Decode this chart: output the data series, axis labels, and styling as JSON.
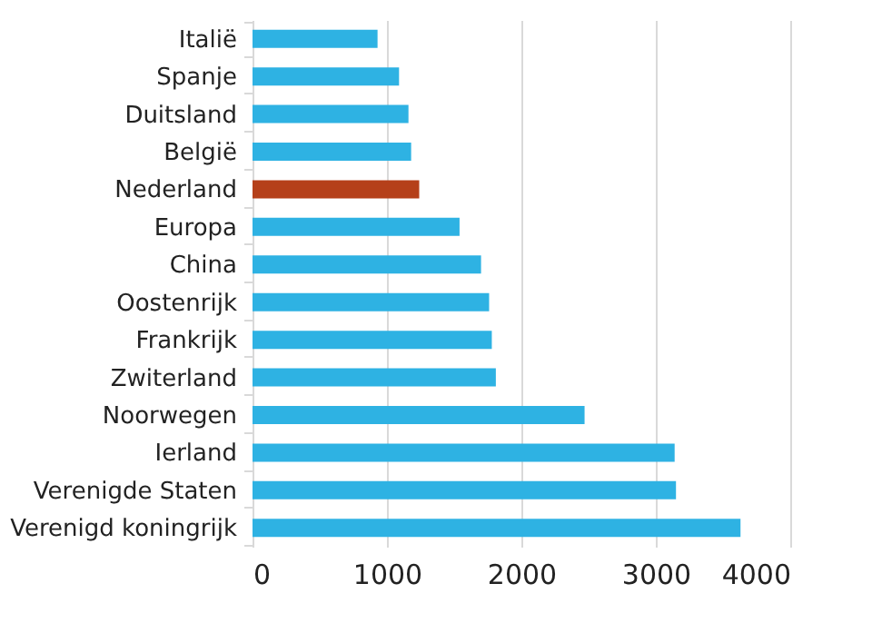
{
  "chart_data": {
    "type": "bar",
    "orientation": "horizontal",
    "categories": [
      "Italië",
      "Spanje",
      "Duitsland",
      "België",
      "Nederland",
      "Europa",
      "China",
      "Oostenrijk",
      "Frankrijk",
      "Zwiterland",
      "Noorwegen",
      "Ierland",
      "Verenigde Staten",
      "Verenigd koningrijk"
    ],
    "values": [
      930,
      1090,
      1160,
      1180,
      1240,
      1540,
      1700,
      1760,
      1780,
      1810,
      2470,
      3140,
      3150,
      3630
    ],
    "colors": [
      "#2eb2e3",
      "#2eb2e3",
      "#2eb2e3",
      "#2eb2e3",
      "#b5401a",
      "#2eb2e3",
      "#2eb2e3",
      "#2eb2e3",
      "#2eb2e3",
      "#2eb2e3",
      "#2eb2e3",
      "#2eb2e3",
      "#2eb2e3",
      "#2eb2e3"
    ],
    "xlim": [
      0,
      4000
    ],
    "xticks": [
      0,
      1000,
      2000,
      3000,
      4000
    ],
    "grid": "x"
  }
}
